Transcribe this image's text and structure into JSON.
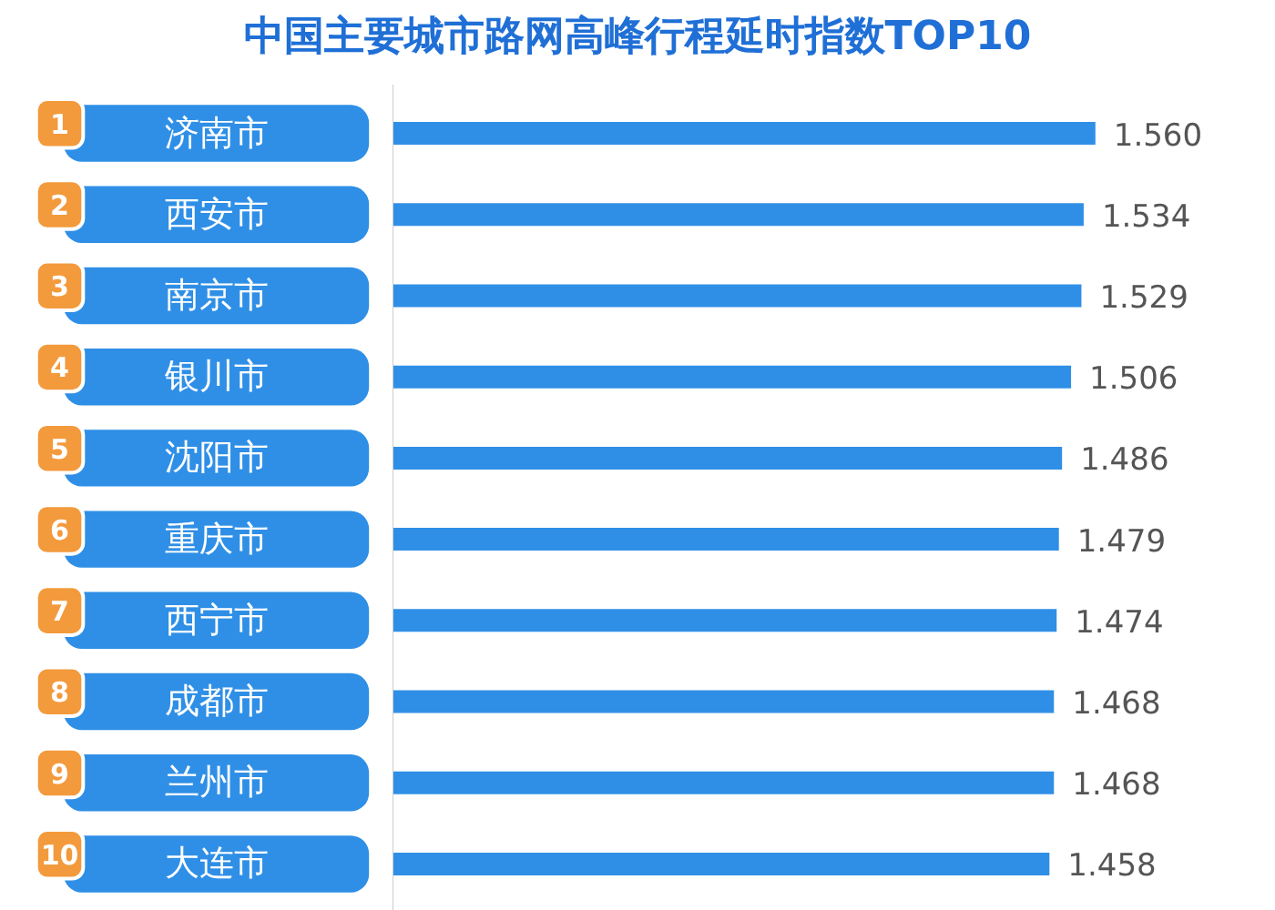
{
  "chart_data": {
    "type": "bar",
    "orientation": "horizontal",
    "title": "中国主要城市路网高峰行程延时指数TOP10",
    "categories": [
      "济南市",
      "西安市",
      "南京市",
      "银川市",
      "沈阳市",
      "重庆市",
      "西宁市",
      "成都市",
      "兰州市",
      "大连市"
    ],
    "values": [
      1.56,
      1.534,
      1.529,
      1.506,
      1.486,
      1.479,
      1.474,
      1.468,
      1.468,
      1.458
    ],
    "value_labels": [
      "1.560",
      "1.534",
      "1.529",
      "1.506",
      "1.486",
      "1.479",
      "1.474",
      "1.468",
      "1.468",
      "1.458"
    ],
    "color": "#2f8fe6",
    "xlim": [
      0,
      1.9
    ],
    "tick_labels": "y",
    "grid": false,
    "annotations": [
      "1",
      "2",
      "3",
      "4",
      "5",
      "6",
      "7",
      "8",
      "9",
      "10"
    ]
  }
}
